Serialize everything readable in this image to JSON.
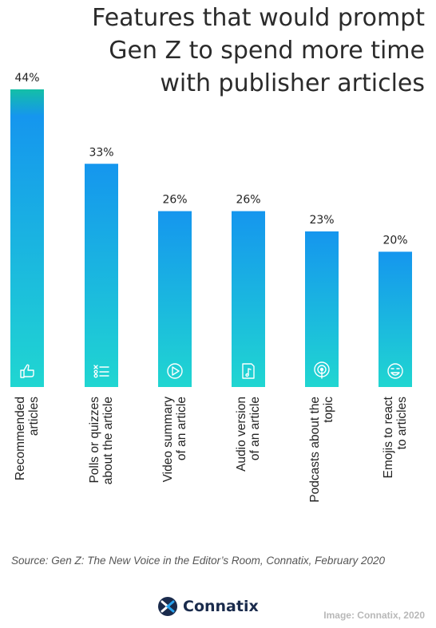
{
  "title_lines": [
    "Features that would prompt",
    "Gen Z to spend more time",
    "with publisher articles"
  ],
  "chart_data": {
    "type": "bar",
    "title": "Features that would prompt Gen Z to spend more time with publisher articles",
    "categories": [
      [
        "Recommended",
        "articles"
      ],
      [
        "Polls or quizzes",
        "about the article"
      ],
      [
        "Video summary",
        "of an article"
      ],
      [
        "Audio version",
        "of an article"
      ],
      [
        "Podcasts about the",
        "topic"
      ],
      [
        "Emojis to react",
        "to articles"
      ]
    ],
    "values": [
      44,
      33,
      26,
      26,
      23,
      20
    ],
    "value_labels": [
      "44%",
      "33%",
      "26%",
      "26%",
      "23%",
      "20%"
    ],
    "icons": [
      "thumbs-up-icon",
      "checklist-icon",
      "play-icon",
      "music-file-icon",
      "podcast-icon",
      "smiley-icon"
    ],
    "ylim": [
      0,
      44
    ],
    "colors": {
      "bar_top": "#1596ee",
      "bar_bottom": "#20d6d1",
      "first_bar_cap": "#14bfa6"
    }
  },
  "source": "Source: Gen Z: The New Voice in the Editor’s Room, Connatix, February 2020",
  "brand": {
    "name": "Connatix",
    "logo_icon": "connatix-logo-icon"
  },
  "credit": "Image: Connatix, 2020"
}
